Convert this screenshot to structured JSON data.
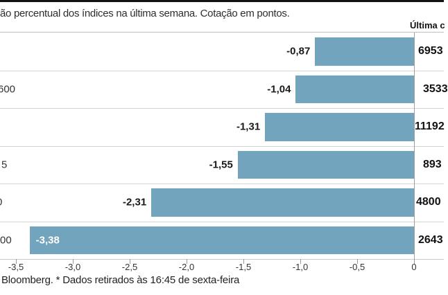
{
  "title": "ão percentual dos índices na última semana. Cotação em pontos.",
  "last_quote_header": "Última c",
  "footer": "Bloomberg. * Dados retirados às 16:45 de sexta-feira",
  "chart_data": {
    "type": "bar",
    "orientation": "horizontal",
    "title": "ão percentual dos índices na última semana. Cotação em pontos.",
    "xlabel": "",
    "ylabel": "",
    "xlim": [
      -3.5,
      0
    ],
    "x_ticks": [
      "-3,5",
      "-3,0",
      "-2,5",
      "-2,0",
      "-1,5",
      "-1,0",
      "-0,5",
      "0"
    ],
    "grid": "row-separators",
    "legend": "none",
    "bar_color": "#72a4bd",
    "separator_color": "#d4d4d4",
    "zero_axis_color": "#9e9e9e",
    "last_quote_column_header": "Última c",
    "source_note": "Bloomberg. * Dados retirados às 16:45 de sexta-feira",
    "rows": [
      {
        "category_visible": "",
        "value": -0.87,
        "value_label": "-0,87",
        "last_quote_visible": "6953"
      },
      {
        "category_visible": "600",
        "value": -1.04,
        "value_label": "-1,04",
        "last_quote_visible": "3533"
      },
      {
        "category_visible": "",
        "value": -1.31,
        "value_label": "-1,31",
        "last_quote_visible": "11192"
      },
      {
        "category_visible": "5",
        "value": -1.55,
        "value_label": "-1,55",
        "last_quote_visible": "893"
      },
      {
        "category_visible": "0",
        "value": -2.31,
        "value_label": "-2,31",
        "last_quote_visible": "4800"
      },
      {
        "category_visible": "00",
        "value": -3.38,
        "value_label": "-3,38",
        "last_quote_visible": "2643"
      }
    ]
  }
}
